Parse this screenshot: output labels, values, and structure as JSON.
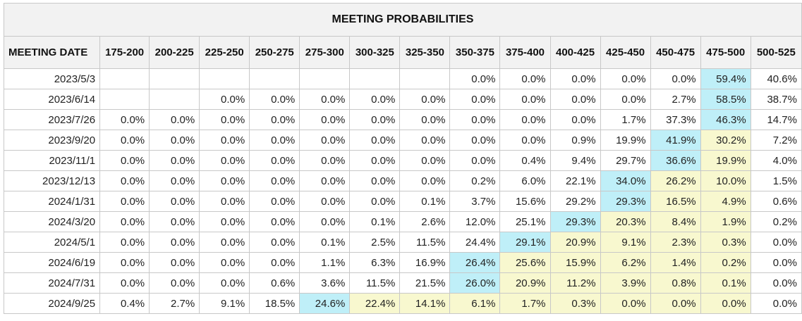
{
  "title": "MEETING PROBABILITIES",
  "date_header": "MEETING DATE",
  "columns": [
    "175-200",
    "200-225",
    "225-250",
    "250-275",
    "275-300",
    "300-325",
    "325-350",
    "350-375",
    "375-400",
    "400-425",
    "425-450",
    "450-475",
    "475-500",
    "500-525"
  ],
  "colors": {
    "highlight_max": "#bfeff8",
    "highlight_mid": "#f8f8cf",
    "header_bg": "#f2f2f2"
  },
  "rows": [
    {
      "date": "2023/5/3",
      "cells": [
        {
          "v": ""
        },
        {
          "v": ""
        },
        {
          "v": ""
        },
        {
          "v": ""
        },
        {
          "v": ""
        },
        {
          "v": ""
        },
        {
          "v": ""
        },
        {
          "v": "0.0%"
        },
        {
          "v": "0.0%"
        },
        {
          "v": "0.0%"
        },
        {
          "v": "0.0%"
        },
        {
          "v": "0.0%"
        },
        {
          "v": "59.4%",
          "h": "hi"
        },
        {
          "v": "40.6%"
        }
      ]
    },
    {
      "date": "2023/6/14",
      "cells": [
        {
          "v": ""
        },
        {
          "v": ""
        },
        {
          "v": "0.0%"
        },
        {
          "v": "0.0%"
        },
        {
          "v": "0.0%"
        },
        {
          "v": "0.0%"
        },
        {
          "v": "0.0%"
        },
        {
          "v": "0.0%"
        },
        {
          "v": "0.0%"
        },
        {
          "v": "0.0%"
        },
        {
          "v": "0.0%"
        },
        {
          "v": "2.7%"
        },
        {
          "v": "58.5%",
          "h": "hi"
        },
        {
          "v": "38.7%"
        }
      ]
    },
    {
      "date": "2023/7/26",
      "cells": [
        {
          "v": "0.0%"
        },
        {
          "v": "0.0%"
        },
        {
          "v": "0.0%"
        },
        {
          "v": "0.0%"
        },
        {
          "v": "0.0%"
        },
        {
          "v": "0.0%"
        },
        {
          "v": "0.0%"
        },
        {
          "v": "0.0%"
        },
        {
          "v": "0.0%"
        },
        {
          "v": "0.0%"
        },
        {
          "v": "1.7%"
        },
        {
          "v": "37.3%"
        },
        {
          "v": "46.3%",
          "h": "hi"
        },
        {
          "v": "14.7%"
        }
      ]
    },
    {
      "date": "2023/9/20",
      "cells": [
        {
          "v": "0.0%"
        },
        {
          "v": "0.0%"
        },
        {
          "v": "0.0%"
        },
        {
          "v": "0.0%"
        },
        {
          "v": "0.0%"
        },
        {
          "v": "0.0%"
        },
        {
          "v": "0.0%"
        },
        {
          "v": "0.0%"
        },
        {
          "v": "0.0%"
        },
        {
          "v": "0.9%"
        },
        {
          "v": "19.9%"
        },
        {
          "v": "41.9%",
          "h": "hi"
        },
        {
          "v": "30.2%",
          "h": "mid"
        },
        {
          "v": "7.2%"
        }
      ]
    },
    {
      "date": "2023/11/1",
      "cells": [
        {
          "v": "0.0%"
        },
        {
          "v": "0.0%"
        },
        {
          "v": "0.0%"
        },
        {
          "v": "0.0%"
        },
        {
          "v": "0.0%"
        },
        {
          "v": "0.0%"
        },
        {
          "v": "0.0%"
        },
        {
          "v": "0.0%"
        },
        {
          "v": "0.4%"
        },
        {
          "v": "9.4%"
        },
        {
          "v": "29.7%"
        },
        {
          "v": "36.6%",
          "h": "hi"
        },
        {
          "v": "19.9%",
          "h": "mid"
        },
        {
          "v": "4.0%"
        }
      ]
    },
    {
      "date": "2023/12/13",
      "cells": [
        {
          "v": "0.0%"
        },
        {
          "v": "0.0%"
        },
        {
          "v": "0.0%"
        },
        {
          "v": "0.0%"
        },
        {
          "v": "0.0%"
        },
        {
          "v": "0.0%"
        },
        {
          "v": "0.0%"
        },
        {
          "v": "0.2%"
        },
        {
          "v": "6.0%"
        },
        {
          "v": "22.1%"
        },
        {
          "v": "34.0%",
          "h": "hi"
        },
        {
          "v": "26.2%",
          "h": "mid"
        },
        {
          "v": "10.0%",
          "h": "mid"
        },
        {
          "v": "1.5%"
        }
      ]
    },
    {
      "date": "2024/1/31",
      "cells": [
        {
          "v": "0.0%"
        },
        {
          "v": "0.0%"
        },
        {
          "v": "0.0%"
        },
        {
          "v": "0.0%"
        },
        {
          "v": "0.0%"
        },
        {
          "v": "0.0%"
        },
        {
          "v": "0.1%"
        },
        {
          "v": "3.7%"
        },
        {
          "v": "15.6%"
        },
        {
          "v": "29.2%"
        },
        {
          "v": "29.3%",
          "h": "hi"
        },
        {
          "v": "16.5%",
          "h": "mid"
        },
        {
          "v": "4.9%",
          "h": "mid"
        },
        {
          "v": "0.6%"
        }
      ]
    },
    {
      "date": "2024/3/20",
      "cells": [
        {
          "v": "0.0%"
        },
        {
          "v": "0.0%"
        },
        {
          "v": "0.0%"
        },
        {
          "v": "0.0%"
        },
        {
          "v": "0.0%"
        },
        {
          "v": "0.1%"
        },
        {
          "v": "2.6%"
        },
        {
          "v": "12.0%"
        },
        {
          "v": "25.1%"
        },
        {
          "v": "29.3%",
          "h": "hi"
        },
        {
          "v": "20.3%",
          "h": "mid"
        },
        {
          "v": "8.4%",
          "h": "mid"
        },
        {
          "v": "1.9%",
          "h": "mid"
        },
        {
          "v": "0.2%"
        }
      ]
    },
    {
      "date": "2024/5/1",
      "cells": [
        {
          "v": "0.0%"
        },
        {
          "v": "0.0%"
        },
        {
          "v": "0.0%"
        },
        {
          "v": "0.0%"
        },
        {
          "v": "0.1%"
        },
        {
          "v": "2.5%"
        },
        {
          "v": "11.5%"
        },
        {
          "v": "24.4%"
        },
        {
          "v": "29.1%",
          "h": "hi"
        },
        {
          "v": "20.9%",
          "h": "mid"
        },
        {
          "v": "9.1%",
          "h": "mid"
        },
        {
          "v": "2.3%",
          "h": "mid"
        },
        {
          "v": "0.3%",
          "h": "mid"
        },
        {
          "v": "0.0%"
        }
      ]
    },
    {
      "date": "2024/6/19",
      "cells": [
        {
          "v": "0.0%"
        },
        {
          "v": "0.0%"
        },
        {
          "v": "0.0%"
        },
        {
          "v": "0.0%"
        },
        {
          "v": "1.1%"
        },
        {
          "v": "6.3%"
        },
        {
          "v": "16.9%"
        },
        {
          "v": "26.4%",
          "h": "hi"
        },
        {
          "v": "25.6%",
          "h": "mid"
        },
        {
          "v": "15.9%",
          "h": "mid"
        },
        {
          "v": "6.2%",
          "h": "mid"
        },
        {
          "v": "1.4%",
          "h": "mid"
        },
        {
          "v": "0.2%",
          "h": "mid"
        },
        {
          "v": "0.0%"
        }
      ]
    },
    {
      "date": "2024/7/31",
      "cells": [
        {
          "v": "0.0%"
        },
        {
          "v": "0.0%"
        },
        {
          "v": "0.0%"
        },
        {
          "v": "0.6%"
        },
        {
          "v": "3.6%"
        },
        {
          "v": "11.5%"
        },
        {
          "v": "21.5%"
        },
        {
          "v": "26.0%",
          "h": "hi"
        },
        {
          "v": "20.9%",
          "h": "mid"
        },
        {
          "v": "11.2%",
          "h": "mid"
        },
        {
          "v": "3.9%",
          "h": "mid"
        },
        {
          "v": "0.8%",
          "h": "mid"
        },
        {
          "v": "0.1%",
          "h": "mid"
        },
        {
          "v": "0.0%"
        }
      ]
    },
    {
      "date": "2024/9/25",
      "cells": [
        {
          "v": "0.4%"
        },
        {
          "v": "2.7%"
        },
        {
          "v": "9.1%"
        },
        {
          "v": "18.5%"
        },
        {
          "v": "24.6%",
          "h": "hi"
        },
        {
          "v": "22.4%",
          "h": "mid"
        },
        {
          "v": "14.1%",
          "h": "mid"
        },
        {
          "v": "6.1%",
          "h": "mid"
        },
        {
          "v": "1.7%",
          "h": "mid"
        },
        {
          "v": "0.3%",
          "h": "mid"
        },
        {
          "v": "0.0%",
          "h": "mid"
        },
        {
          "v": "0.0%",
          "h": "mid"
        },
        {
          "v": "0.0%",
          "h": "mid"
        },
        {
          "v": "0.0%"
        }
      ]
    }
  ]
}
